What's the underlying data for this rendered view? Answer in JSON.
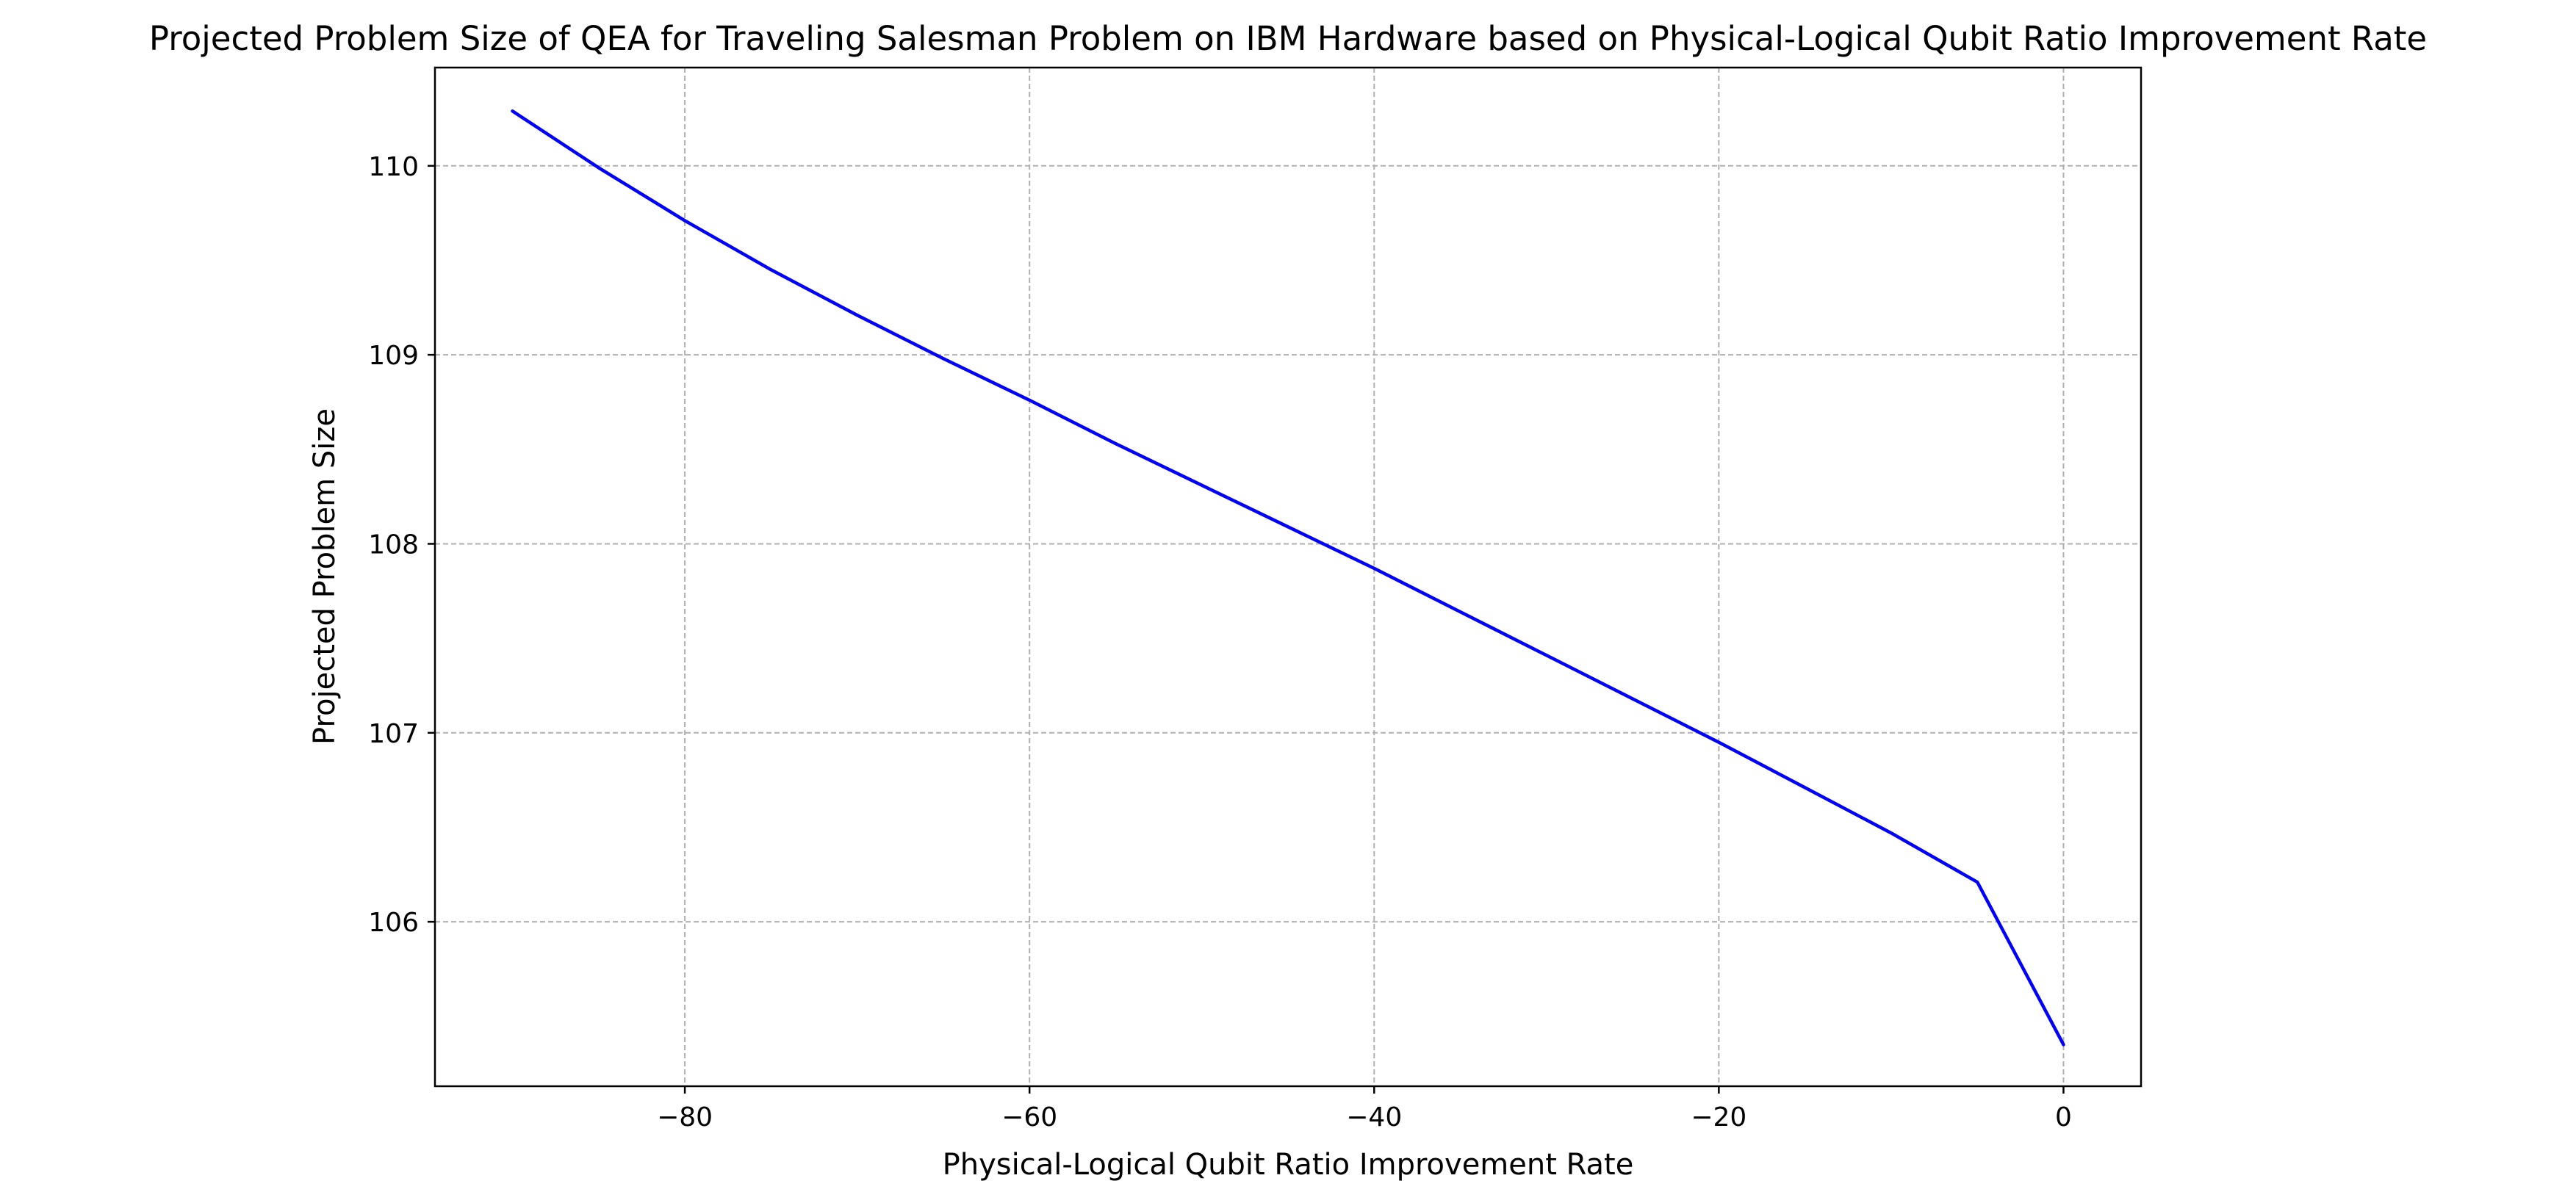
{
  "chart_data": {
    "type": "line",
    "title": "Projected Problem Size of QEA for Traveling Salesman Problem on IBM Hardware based on Physical-Logical Qubit Ratio Improvement Rate",
    "xlabel": "Physical-Logical Qubit Ratio Improvement Rate",
    "ylabel": "Projected Problem Size",
    "xlim": [
      -94.5,
      4.5
    ],
    "ylim": [
      105.13,
      110.52
    ],
    "xticks": [
      -80,
      -60,
      -40,
      -20,
      0
    ],
    "xtick_labels": [
      "−80",
      "−60",
      "−40",
      "−20",
      "0"
    ],
    "yticks": [
      106,
      107,
      108,
      109,
      110
    ],
    "ytick_labels": [
      "106",
      "107",
      "108",
      "109",
      "110"
    ],
    "grid": true,
    "series": [
      {
        "name": "Projected Problem Size",
        "color": "#0000ff",
        "x": [
          -90,
          -85,
          -80,
          -75,
          -70,
          -65,
          -60,
          -55,
          -50,
          -45,
          -40,
          -35,
          -30,
          -25,
          -20,
          -15,
          -10,
          -5,
          0
        ],
        "y": [
          110.29,
          109.99,
          109.71,
          109.45,
          109.21,
          108.98,
          108.76,
          108.53,
          108.31,
          108.09,
          107.87,
          107.64,
          107.41,
          107.18,
          106.95,
          106.71,
          106.47,
          106.21,
          105.35
        ]
      }
    ]
  }
}
